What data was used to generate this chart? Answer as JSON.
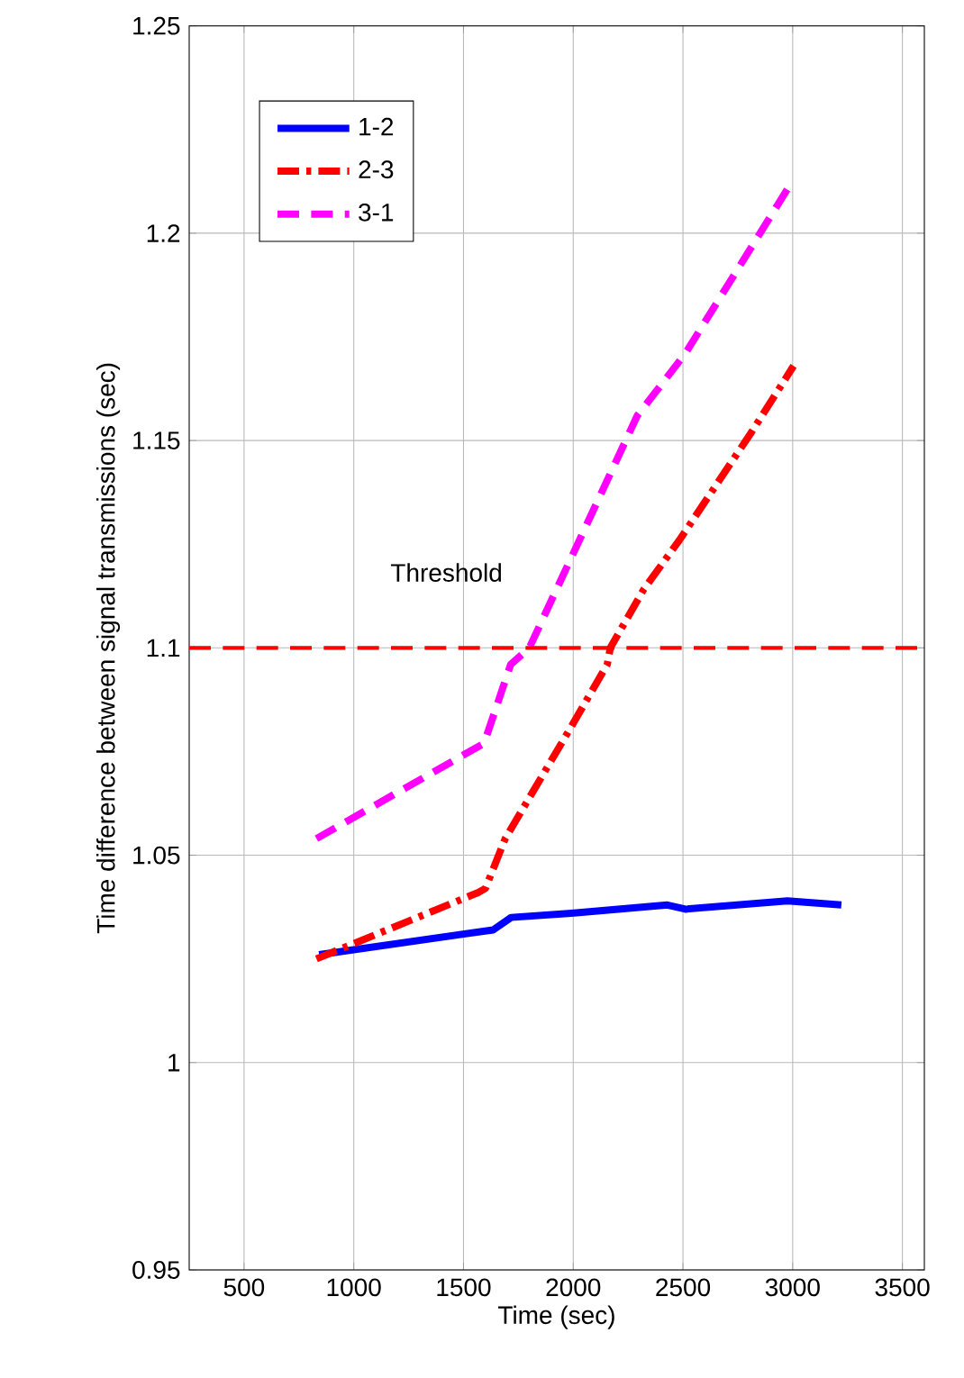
{
  "chart_data": {
    "type": "line",
    "xlabel": "Time (sec)",
    "ylabel": "Time difference between signal transmissions (sec)",
    "xlim": [
      250,
      3600
    ],
    "ylim": [
      0.95,
      1.25
    ],
    "xticks": [
      500,
      1000,
      1500,
      2000,
      2500,
      3000,
      3500
    ],
    "yticks": [
      0.95,
      1,
      1.05,
      1.1,
      1.15,
      1.2,
      1.25
    ],
    "grid": true,
    "legend": "top left",
    "series": [
      {
        "name": "1-2",
        "color": "#0000ff",
        "line_style": "solid",
        "x": [
          842,
          1635,
          1717,
          1991,
          2429,
          2511,
          2976,
          3222
        ],
        "values": [
          1.026,
          1.032,
          1.035,
          1.036,
          1.038,
          1.037,
          1.039,
          1.038
        ]
      },
      {
        "name": "2-3",
        "color": "#ff0000",
        "line_style": "dashdot",
        "x": [
          830,
          1567,
          1600,
          1690,
          1991,
          2155,
          2169,
          2320,
          2484,
          2812,
          3004
        ],
        "values": [
          1.025,
          1.041,
          1.042,
          1.054,
          1.081,
          1.096,
          1.1,
          1.114,
          1.126,
          1.152,
          1.168
        ]
      },
      {
        "name": "3-1",
        "color": "#ff00ff",
        "line_style": "dashed",
        "x": [
          830,
          1594,
          1715,
          1800,
          2292,
          2511,
          3004
        ],
        "values": [
          1.054,
          1.077,
          1.096,
          1.1,
          1.156,
          1.171,
          1.213
        ]
      }
    ],
    "ref_lines": [
      {
        "axis": "y",
        "value": 1.1,
        "label": "Threshold",
        "color": "#ff0000",
        "line_style": "dashed"
      }
    ]
  }
}
